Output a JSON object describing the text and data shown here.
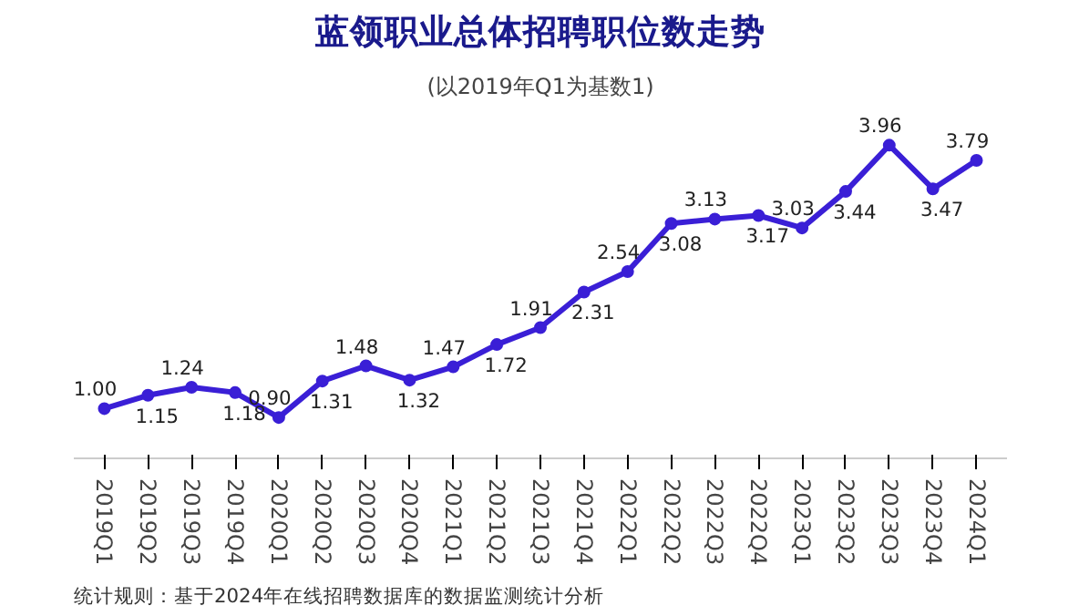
{
  "chart_data": {
    "type": "line",
    "title": "蓝领职业总体招聘职位数走势",
    "subtitle": "(以2019年Q1为基数1)",
    "categories": [
      "2019Q1",
      "2019Q2",
      "2019Q3",
      "2019Q4",
      "2020Q1",
      "2020Q2",
      "2020Q3",
      "2020Q4",
      "2021Q1",
      "2021Q2",
      "2021Q3",
      "2021Q4",
      "2022Q1",
      "2022Q2",
      "2022Q3",
      "2022Q4",
      "2023Q1",
      "2023Q2",
      "2023Q3",
      "2023Q4",
      "2024Q1"
    ],
    "series": [
      {
        "color": "#3a1fd6",
        "values": [
          1.0,
          1.15,
          1.24,
          1.18,
          0.9,
          1.31,
          1.48,
          1.32,
          1.47,
          1.72,
          1.91,
          2.31,
          2.54,
          3.08,
          3.13,
          3.17,
          3.03,
          3.44,
          3.96,
          3.47,
          3.79
        ],
        "value_labels": [
          "1.00",
          "1.15",
          "1.24",
          "1.18",
          "0.90",
          "1.31",
          "1.48",
          "1.32",
          "1.47",
          "1.72",
          "1.91",
          "2.31",
          "2.54",
          "3.08",
          "3.13",
          "3.17",
          "3.03",
          "3.44",
          "3.96",
          "3.47",
          "3.79"
        ]
      }
    ],
    "marker": "circle",
    "line_style": "solid",
    "grid": false,
    "annotations": [
      "统计规则：基于2024年在线招聘数据库的数据监测统计分析"
    ]
  }
}
